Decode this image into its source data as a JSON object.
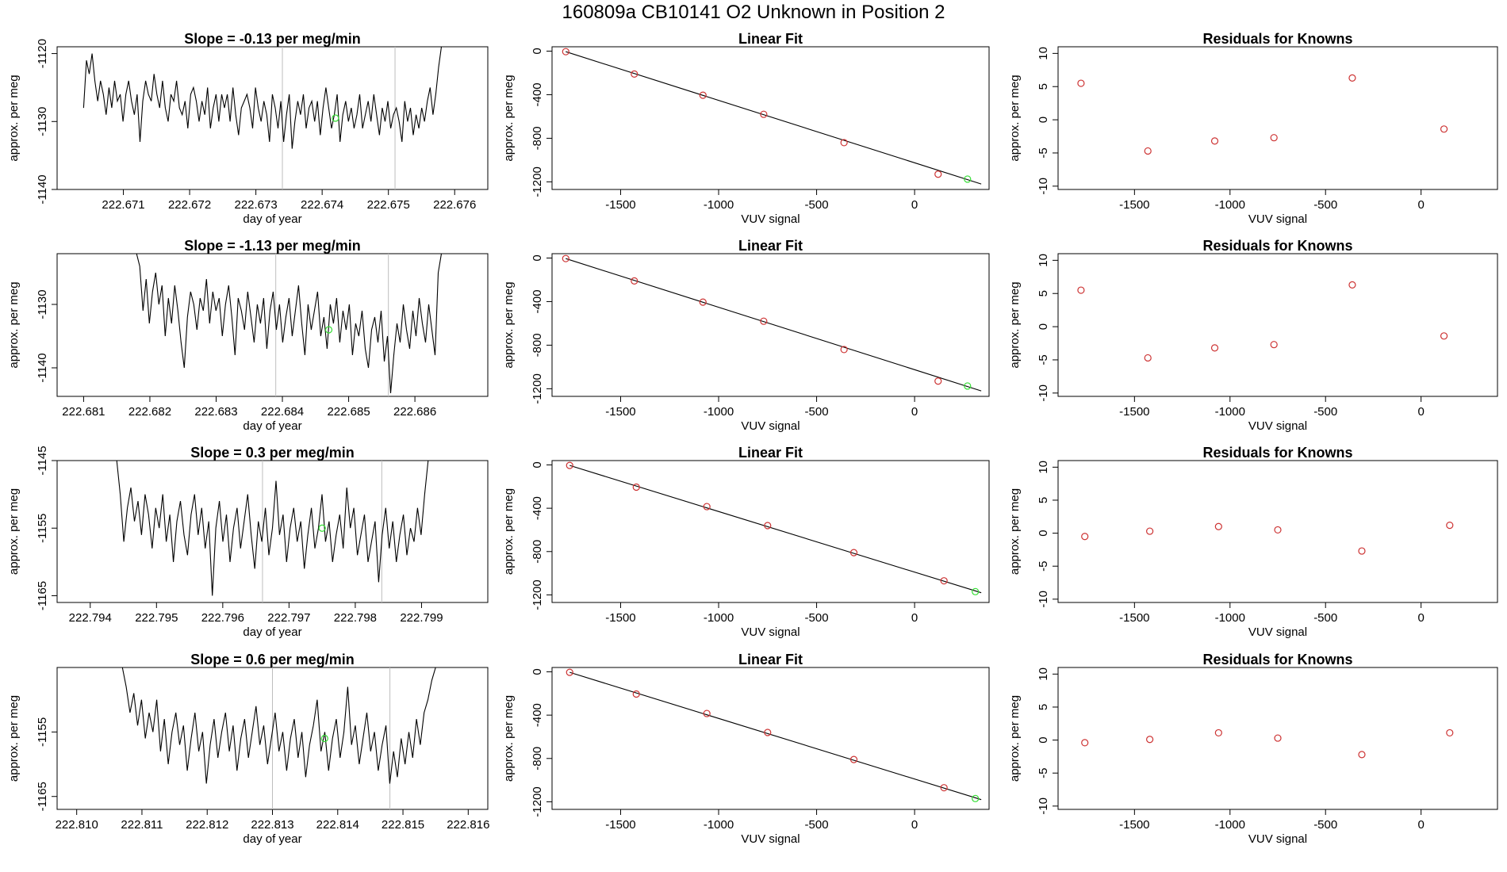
{
  "page": {
    "title": "160809a      CB10141    O2 Unknown in Position  2"
  },
  "colors": {
    "line": "#000000",
    "known": "#CD3333",
    "unknown": "#33DD33",
    "vline": "#BEBEBE"
  },
  "chart_data": [
    {
      "type": "line",
      "panel": "time-series-row-1",
      "title": "Slope =  -0.13  per meg/min",
      "xlabel": "day of year",
      "ylabel": "approx. per meg",
      "xlim": [
        222.67,
        222.6765
      ],
      "ylim": [
        -1140,
        -1119
      ],
      "xticks": [
        "222.671",
        "222.672",
        "222.673",
        "222.674",
        "222.675",
        "222.676"
      ],
      "yticks": [
        -1140,
        -1130,
        -1120
      ],
      "vlines": [
        222.6734,
        222.6751
      ],
      "x_start": 222.6704,
      "x_end": 222.6758,
      "y": [
        -1128,
        -1121,
        -1123,
        -1120,
        -1124,
        -1127,
        -1124,
        -1126,
        -1129,
        -1125,
        -1128,
        -1124,
        -1127,
        -1126,
        -1130,
        -1126,
        -1124,
        -1127,
        -1129,
        -1126,
        -1133,
        -1127,
        -1124,
        -1126,
        -1127,
        -1123,
        -1126,
        -1128,
        -1124,
        -1128,
        -1130,
        -1126,
        -1127,
        -1124,
        -1128,
        -1129,
        -1127,
        -1131,
        -1126,
        -1125,
        -1127,
        -1130,
        -1127,
        -1129,
        -1125,
        -1131,
        -1128,
        -1126,
        -1130,
        -1126,
        -1128,
        -1126,
        -1130,
        -1125,
        -1129,
        -1132,
        -1128,
        -1127,
        -1126,
        -1128,
        -1131,
        -1125,
        -1128,
        -1130,
        -1127,
        -1129,
        -1133,
        -1126,
        -1128,
        -1131,
        -1127,
        -1133,
        -1129,
        -1126,
        -1134,
        -1130,
        -1127,
        -1129,
        -1126,
        -1131,
        -1128,
        -1127,
        -1130,
        -1127,
        -1132,
        -1128,
        -1125,
        -1128,
        -1131,
        -1129,
        -1126,
        -1133,
        -1129,
        -1127,
        -1130,
        -1128,
        -1131,
        -1129,
        -1126,
        -1131,
        -1129,
        -1127,
        -1130,
        -1126,
        -1129,
        -1132,
        -1128,
        -1130,
        -1127,
        -1131,
        -1129,
        -1128,
        -1130,
        -1133,
        -1127,
        -1130,
        -1128,
        -1132,
        -1129,
        -1131,
        -1128,
        -1130,
        -1127,
        -1125,
        -1129,
        -1126,
        -1122,
        -1119
      ],
      "unknown_point": [
        222.6742,
        -1129.5
      ]
    },
    {
      "type": "scatter",
      "panel": "linear-fit-row-1",
      "title": "Linear Fit",
      "xlabel": "VUV signal",
      "ylabel": "approx. per meg",
      "xlim": [
        -1850,
        380
      ],
      "ylim": [
        -1270,
        40
      ],
      "xticks": [
        -1500,
        -1000,
        -500,
        0
      ],
      "yticks": [
        0,
        -400,
        -800,
        -1200
      ],
      "knowns": {
        "x": [
          -1780,
          -1430,
          -1080,
          -770,
          -360,
          120
        ],
        "y": [
          -5,
          -210,
          -405,
          -580,
          -840,
          -1130
        ]
      },
      "unknown": {
        "x": 270,
        "y": -1175
      },
      "fit_line": {
        "x": [
          -1780,
          340
        ],
        "y": [
          -5,
          -1220
        ]
      }
    },
    {
      "type": "scatter",
      "panel": "residuals-row-1",
      "title": "Residuals for Knowns",
      "xlabel": "VUV signal",
      "ylabel": "approx. per meg",
      "xlim": [
        -1900,
        400
      ],
      "ylim": [
        -10.5,
        11
      ],
      "xticks": [
        -1500,
        -1000,
        -500,
        0
      ],
      "yticks": [
        10,
        5,
        0,
        -5,
        -10
      ],
      "x": [
        -1780,
        -1430,
        -1080,
        -770,
        -360,
        120
      ],
      "y": [
        5.5,
        -4.7,
        -3.2,
        -2.7,
        6.3,
        -1.4
      ]
    },
    {
      "type": "line",
      "panel": "time-series-row-2",
      "title": "Slope =  -1.13  per meg/min",
      "xlabel": "day of year",
      "ylabel": "approx. per meg",
      "xlim": [
        222.6806,
        222.6871
      ],
      "ylim": [
        -1144.5,
        -1122
      ],
      "xticks": [
        "222.681",
        "222.682",
        "222.683",
        "222.684",
        "222.685",
        "222.686"
      ],
      "yticks": [
        -1140,
        -1130
      ],
      "vlines": [
        222.6839,
        222.6856
      ],
      "x_start": 222.6818,
      "x_end": 222.6864,
      "y": [
        -1120,
        -1124,
        -1131,
        -1126,
        -1133,
        -1128,
        -1125,
        -1130,
        -1127,
        -1135,
        -1129,
        -1133,
        -1127,
        -1131,
        -1136,
        -1140,
        -1132,
        -1128,
        -1130,
        -1134,
        -1129,
        -1131,
        -1126,
        -1133,
        -1128,
        -1131,
        -1129,
        -1135,
        -1130,
        -1127,
        -1132,
        -1138,
        -1129,
        -1131,
        -1134,
        -1128,
        -1132,
        -1136,
        -1130,
        -1133,
        -1129,
        -1137,
        -1131,
        -1128,
        -1134,
        -1130,
        -1136,
        -1132,
        -1129,
        -1135,
        -1131,
        -1127,
        -1133,
        -1138,
        -1130,
        -1134,
        -1131,
        -1128,
        -1135,
        -1132,
        -1137,
        -1130,
        -1133,
        -1129,
        -1136,
        -1131,
        -1134,
        -1130,
        -1138,
        -1133,
        -1135,
        -1131,
        -1137,
        -1140,
        -1134,
        -1132,
        -1136,
        -1131,
        -1139,
        -1135,
        -1144,
        -1138,
        -1133,
        -1136,
        -1130,
        -1134,
        -1137,
        -1131,
        -1135,
        -1129,
        -1133,
        -1136,
        -1130,
        -1134,
        -1138,
        -1125,
        -1118
      ],
      "unknown_point": [
        222.6847,
        -1134
      ]
    },
    {
      "type": "scatter",
      "panel": "linear-fit-row-2",
      "title": "Linear Fit",
      "xlabel": "VUV signal",
      "ylabel": "approx. per meg",
      "xlim": [
        -1850,
        380
      ],
      "ylim": [
        -1270,
        40
      ],
      "xticks": [
        -1500,
        -1000,
        -500,
        0
      ],
      "yticks": [
        0,
        -400,
        -800,
        -1200
      ],
      "knowns": {
        "x": [
          -1780,
          -1430,
          -1080,
          -770,
          -360,
          120
        ],
        "y": [
          -5,
          -210,
          -405,
          -580,
          -840,
          -1130
        ]
      },
      "unknown": {
        "x": 270,
        "y": -1175
      },
      "fit_line": {
        "x": [
          -1780,
          340
        ],
        "y": [
          -5,
          -1220
        ]
      }
    },
    {
      "type": "scatter",
      "panel": "residuals-row-2",
      "title": "Residuals for Knowns",
      "xlabel": "VUV signal",
      "ylabel": "approx. per meg",
      "xlim": [
        -1900,
        400
      ],
      "ylim": [
        -10.5,
        11
      ],
      "xticks": [
        -1500,
        -1000,
        -500,
        0
      ],
      "yticks": [
        10,
        5,
        0,
        -5,
        -10
      ],
      "x": [
        -1780,
        -1430,
        -1080,
        -770,
        -360,
        120
      ],
      "y": [
        5.5,
        -4.7,
        -3.2,
        -2.7,
        6.3,
        -1.4
      ]
    },
    {
      "type": "line",
      "panel": "time-series-row-3",
      "title": "Slope =  0.3  per meg/min",
      "xlabel": "day of year",
      "ylabel": "approx. per meg",
      "xlim": [
        222.7935,
        222.8
      ],
      "ylim": [
        -1166,
        -1145
      ],
      "xticks": [
        "222.794",
        "222.795",
        "222.796",
        "222.797",
        "222.798",
        "222.799"
      ],
      "yticks": [
        -1145,
        -1155,
        -1165
      ],
      "vlines": [
        222.7966,
        222.7984
      ],
      "x_start": 222.7944,
      "x_end": 222.7991,
      "y": [
        -1144,
        -1150,
        -1157,
        -1152,
        -1149,
        -1154,
        -1151,
        -1156,
        -1150,
        -1153,
        -1158,
        -1152,
        -1155,
        -1150,
        -1157,
        -1153,
        -1160,
        -1154,
        -1151,
        -1156,
        -1159,
        -1153,
        -1150,
        -1156,
        -1152,
        -1158,
        -1154,
        -1165,
        -1155,
        -1151,
        -1157,
        -1153,
        -1160,
        -1155,
        -1152,
        -1158,
        -1154,
        -1150,
        -1156,
        -1161,
        -1154,
        -1157,
        -1152,
        -1159,
        -1155,
        -1148,
        -1156,
        -1153,
        -1160,
        -1155,
        -1152,
        -1157,
        -1154,
        -1161,
        -1156,
        -1152,
        -1158,
        -1155,
        -1150,
        -1157,
        -1154,
        -1160,
        -1156,
        -1153,
        -1158,
        -1149,
        -1155,
        -1152,
        -1159,
        -1156,
        -1153,
        -1160,
        -1157,
        -1154,
        -1163,
        -1156,
        -1152,
        -1158,
        -1154,
        -1160,
        -1156,
        -1153,
        -1159,
        -1155,
        -1157,
        -1152,
        -1156,
        -1150,
        -1145
      ],
      "unknown_point": [
        222.7975,
        -1155
      ]
    },
    {
      "type": "scatter",
      "panel": "linear-fit-row-3",
      "title": "Linear Fit",
      "xlabel": "VUV signal",
      "ylabel": "approx. per meg",
      "xlim": [
        -1850,
        380
      ],
      "ylim": [
        -1270,
        40
      ],
      "xticks": [
        -1500,
        -1000,
        -500,
        0
      ],
      "yticks": [
        0,
        -400,
        -800,
        -1200
      ],
      "knowns": {
        "x": [
          -1760,
          -1420,
          -1060,
          -750,
          -310,
          150
        ],
        "y": [
          -5,
          -205,
          -385,
          -560,
          -810,
          -1070
        ]
      },
      "unknown": {
        "x": 310,
        "y": -1170
      },
      "fit_line": {
        "x": [
          -1760,
          340
        ],
        "y": [
          -5,
          -1180
        ]
      }
    },
    {
      "type": "scatter",
      "panel": "residuals-row-3",
      "title": "Residuals for Knowns",
      "xlabel": "VUV signal",
      "ylabel": "approx. per meg",
      "xlim": [
        -1900,
        400
      ],
      "ylim": [
        -10.5,
        11
      ],
      "xticks": [
        -1500,
        -1000,
        -500,
        0
      ],
      "yticks": [
        10,
        5,
        0,
        -5,
        -10
      ],
      "x": [
        -1760,
        -1420,
        -1060,
        -750,
        -310,
        150
      ],
      "y": [
        -0.5,
        0.3,
        1.0,
        0.5,
        -2.7,
        1.2
      ]
    },
    {
      "type": "line",
      "panel": "time-series-row-4",
      "title": "Slope =  0.6  per meg/min",
      "xlabel": "day of year",
      "ylabel": "approx. per meg",
      "xlim": [
        222.8097,
        222.8163
      ],
      "ylim": [
        -1167,
        -1145
      ],
      "xticks": [
        "222.810",
        "222.811",
        "222.812",
        "222.813",
        "222.814",
        "222.815",
        "222.816"
      ],
      "yticks": [
        -1155,
        -1165
      ],
      "vlines": [
        222.813,
        222.8148
      ],
      "x_start": 222.8107,
      "x_end": 222.8155,
      "y": [
        -1140,
        -1148,
        -1152,
        -1149,
        -1154,
        -1150,
        -1156,
        -1152,
        -1155,
        -1150,
        -1158,
        -1153,
        -1160,
        -1155,
        -1152,
        -1157,
        -1154,
        -1161,
        -1156,
        -1152,
        -1158,
        -1155,
        -1163,
        -1157,
        -1153,
        -1159,
        -1155,
        -1152,
        -1158,
        -1154,
        -1161,
        -1156,
        -1153,
        -1159,
        -1155,
        -1151,
        -1157,
        -1154,
        -1160,
        -1156,
        -1152,
        -1158,
        -1155,
        -1161,
        -1156,
        -1153,
        -1159,
        -1155,
        -1162,
        -1157,
        -1154,
        -1150,
        -1158,
        -1155,
        -1161,
        -1156,
        -1153,
        -1159,
        -1155,
        -1148,
        -1157,
        -1154,
        -1160,
        -1156,
        -1152,
        -1158,
        -1155,
        -1161,
        -1157,
        -1154,
        -1163,
        -1158,
        -1162,
        -1156,
        -1160,
        -1155,
        -1159,
        -1153,
        -1157,
        -1152,
        -1150,
        -1147,
        -1140
      ],
      "unknown_point": [
        222.8138,
        -1156
      ]
    },
    {
      "type": "scatter",
      "panel": "linear-fit-row-4",
      "title": "Linear Fit",
      "xlabel": "VUV signal",
      "ylabel": "approx. per meg",
      "xlim": [
        -1850,
        380
      ],
      "ylim": [
        -1270,
        40
      ],
      "xticks": [
        -1500,
        -1000,
        -500,
        0
      ],
      "yticks": [
        0,
        -400,
        -800,
        -1200
      ],
      "knowns": {
        "x": [
          -1760,
          -1420,
          -1060,
          -750,
          -310,
          150
        ],
        "y": [
          -5,
          -205,
          -385,
          -560,
          -810,
          -1070
        ]
      },
      "unknown": {
        "x": 310,
        "y": -1170
      },
      "fit_line": {
        "x": [
          -1760,
          340
        ],
        "y": [
          -5,
          -1180
        ]
      }
    },
    {
      "type": "scatter",
      "panel": "residuals-row-4",
      "title": "Residuals for Knowns",
      "xlabel": "VUV signal",
      "ylabel": "approx. per meg",
      "xlim": [
        -1900,
        400
      ],
      "ylim": [
        -10.5,
        11
      ],
      "xticks": [
        -1500,
        -1000,
        -500,
        0
      ],
      "yticks": [
        10,
        5,
        0,
        -5,
        -10
      ],
      "x": [
        -1760,
        -1420,
        -1060,
        -750,
        -310,
        150
      ],
      "y": [
        -0.4,
        0.1,
        1.1,
        0.3,
        -2.2,
        1.1
      ]
    }
  ]
}
